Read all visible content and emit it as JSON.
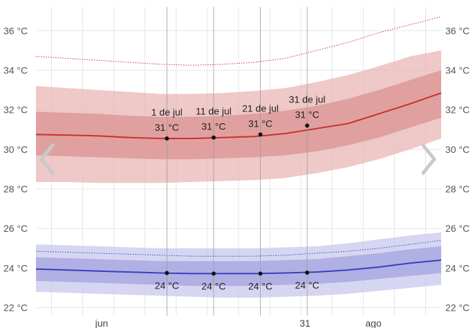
{
  "chart_data": {
    "type": "area",
    "x_months": [
      "jun",
      "ago"
    ],
    "x_extra_label": "31",
    "y_axis": {
      "ticks": [
        22,
        24,
        26,
        28,
        30,
        32,
        34,
        36
      ],
      "unit": "°C",
      "ylim": [
        21.6,
        37.2
      ]
    },
    "grid": true,
    "days": [
      0,
      10,
      20,
      30,
      40,
      50,
      60,
      70,
      80,
      90,
      100,
      110,
      120,
      130
    ],
    "high": {
      "color": "#c8302f",
      "mean": [
        30.75,
        30.72,
        30.68,
        30.6,
        30.55,
        30.55,
        30.6,
        30.65,
        30.8,
        31.05,
        31.3,
        31.8,
        32.3,
        32.85
      ],
      "p25": [
        29.7,
        29.65,
        29.6,
        29.55,
        29.5,
        29.5,
        29.55,
        29.6,
        29.7,
        29.9,
        30.2,
        30.6,
        31.1,
        31.6
      ],
      "p75": [
        31.9,
        31.85,
        31.8,
        31.7,
        31.65,
        31.65,
        31.7,
        31.8,
        31.95,
        32.2,
        32.55,
        33.0,
        33.5,
        34.0
      ],
      "p10": [
        28.35,
        28.35,
        28.3,
        28.3,
        28.3,
        28.35,
        28.4,
        28.45,
        28.55,
        28.8,
        29.1,
        29.5,
        30.0,
        30.55
      ],
      "p90": [
        33.2,
        33.1,
        33.0,
        32.9,
        32.8,
        32.8,
        32.85,
        32.95,
        33.1,
        33.4,
        33.75,
        34.2,
        34.7,
        35.0
      ],
      "record": [
        34.7,
        34.6,
        34.5,
        34.4,
        34.3,
        34.25,
        34.3,
        34.4,
        34.6,
        35.0,
        35.4,
        35.9,
        36.3,
        36.7
      ]
    },
    "low": {
      "color": "#3a3fbd",
      "mean": [
        23.95,
        23.9,
        23.85,
        23.8,
        23.75,
        23.72,
        23.72,
        23.72,
        23.75,
        23.8,
        23.9,
        24.05,
        24.25,
        24.4
      ],
      "p25": [
        23.35,
        23.3,
        23.25,
        23.2,
        23.15,
        23.1,
        23.1,
        23.1,
        23.15,
        23.2,
        23.3,
        23.45,
        23.6,
        23.75
      ],
      "p75": [
        24.55,
        24.5,
        24.45,
        24.4,
        24.35,
        24.35,
        24.35,
        24.35,
        24.4,
        24.45,
        24.6,
        24.75,
        24.95,
        25.1
      ],
      "p10": [
        22.8,
        22.75,
        22.7,
        22.65,
        22.6,
        22.55,
        22.5,
        22.5,
        22.55,
        22.6,
        22.7,
        22.85,
        23.0,
        23.15
      ],
      "p90": [
        25.2,
        25.15,
        25.1,
        25.05,
        25.0,
        25.0,
        25.0,
        25.0,
        25.05,
        25.1,
        25.25,
        25.45,
        25.65,
        25.8
      ],
      "record": [
        24.85,
        24.8,
        24.75,
        24.7,
        24.65,
        24.6,
        24.6,
        24.6,
        24.65,
        24.75,
        24.85,
        25.0,
        25.2,
        25.4
      ]
    },
    "annotations": [
      {
        "day": 42,
        "date": "1 de jul",
        "high_value": 30.55,
        "high_label": "31 °C",
        "low_value": 23.75,
        "low_label": "24 °C"
      },
      {
        "day": 57,
        "date": "11 de jul",
        "high_value": 30.6,
        "high_label": "31 °C",
        "low_value": 23.72,
        "low_label": "24 °C"
      },
      {
        "day": 72,
        "date": "21 de jul",
        "high_value": 30.75,
        "high_label": "31 °C",
        "low_value": 23.72,
        "low_label": "24 °C"
      },
      {
        "day": 87,
        "date": "31 de jul",
        "high_value": 31.2,
        "high_label": "31 °C",
        "low_value": 23.77,
        "low_label": "24 °C"
      }
    ]
  },
  "nav": {
    "prev_icon": "chevron-left-icon",
    "next_icon": "chevron-right-icon"
  }
}
